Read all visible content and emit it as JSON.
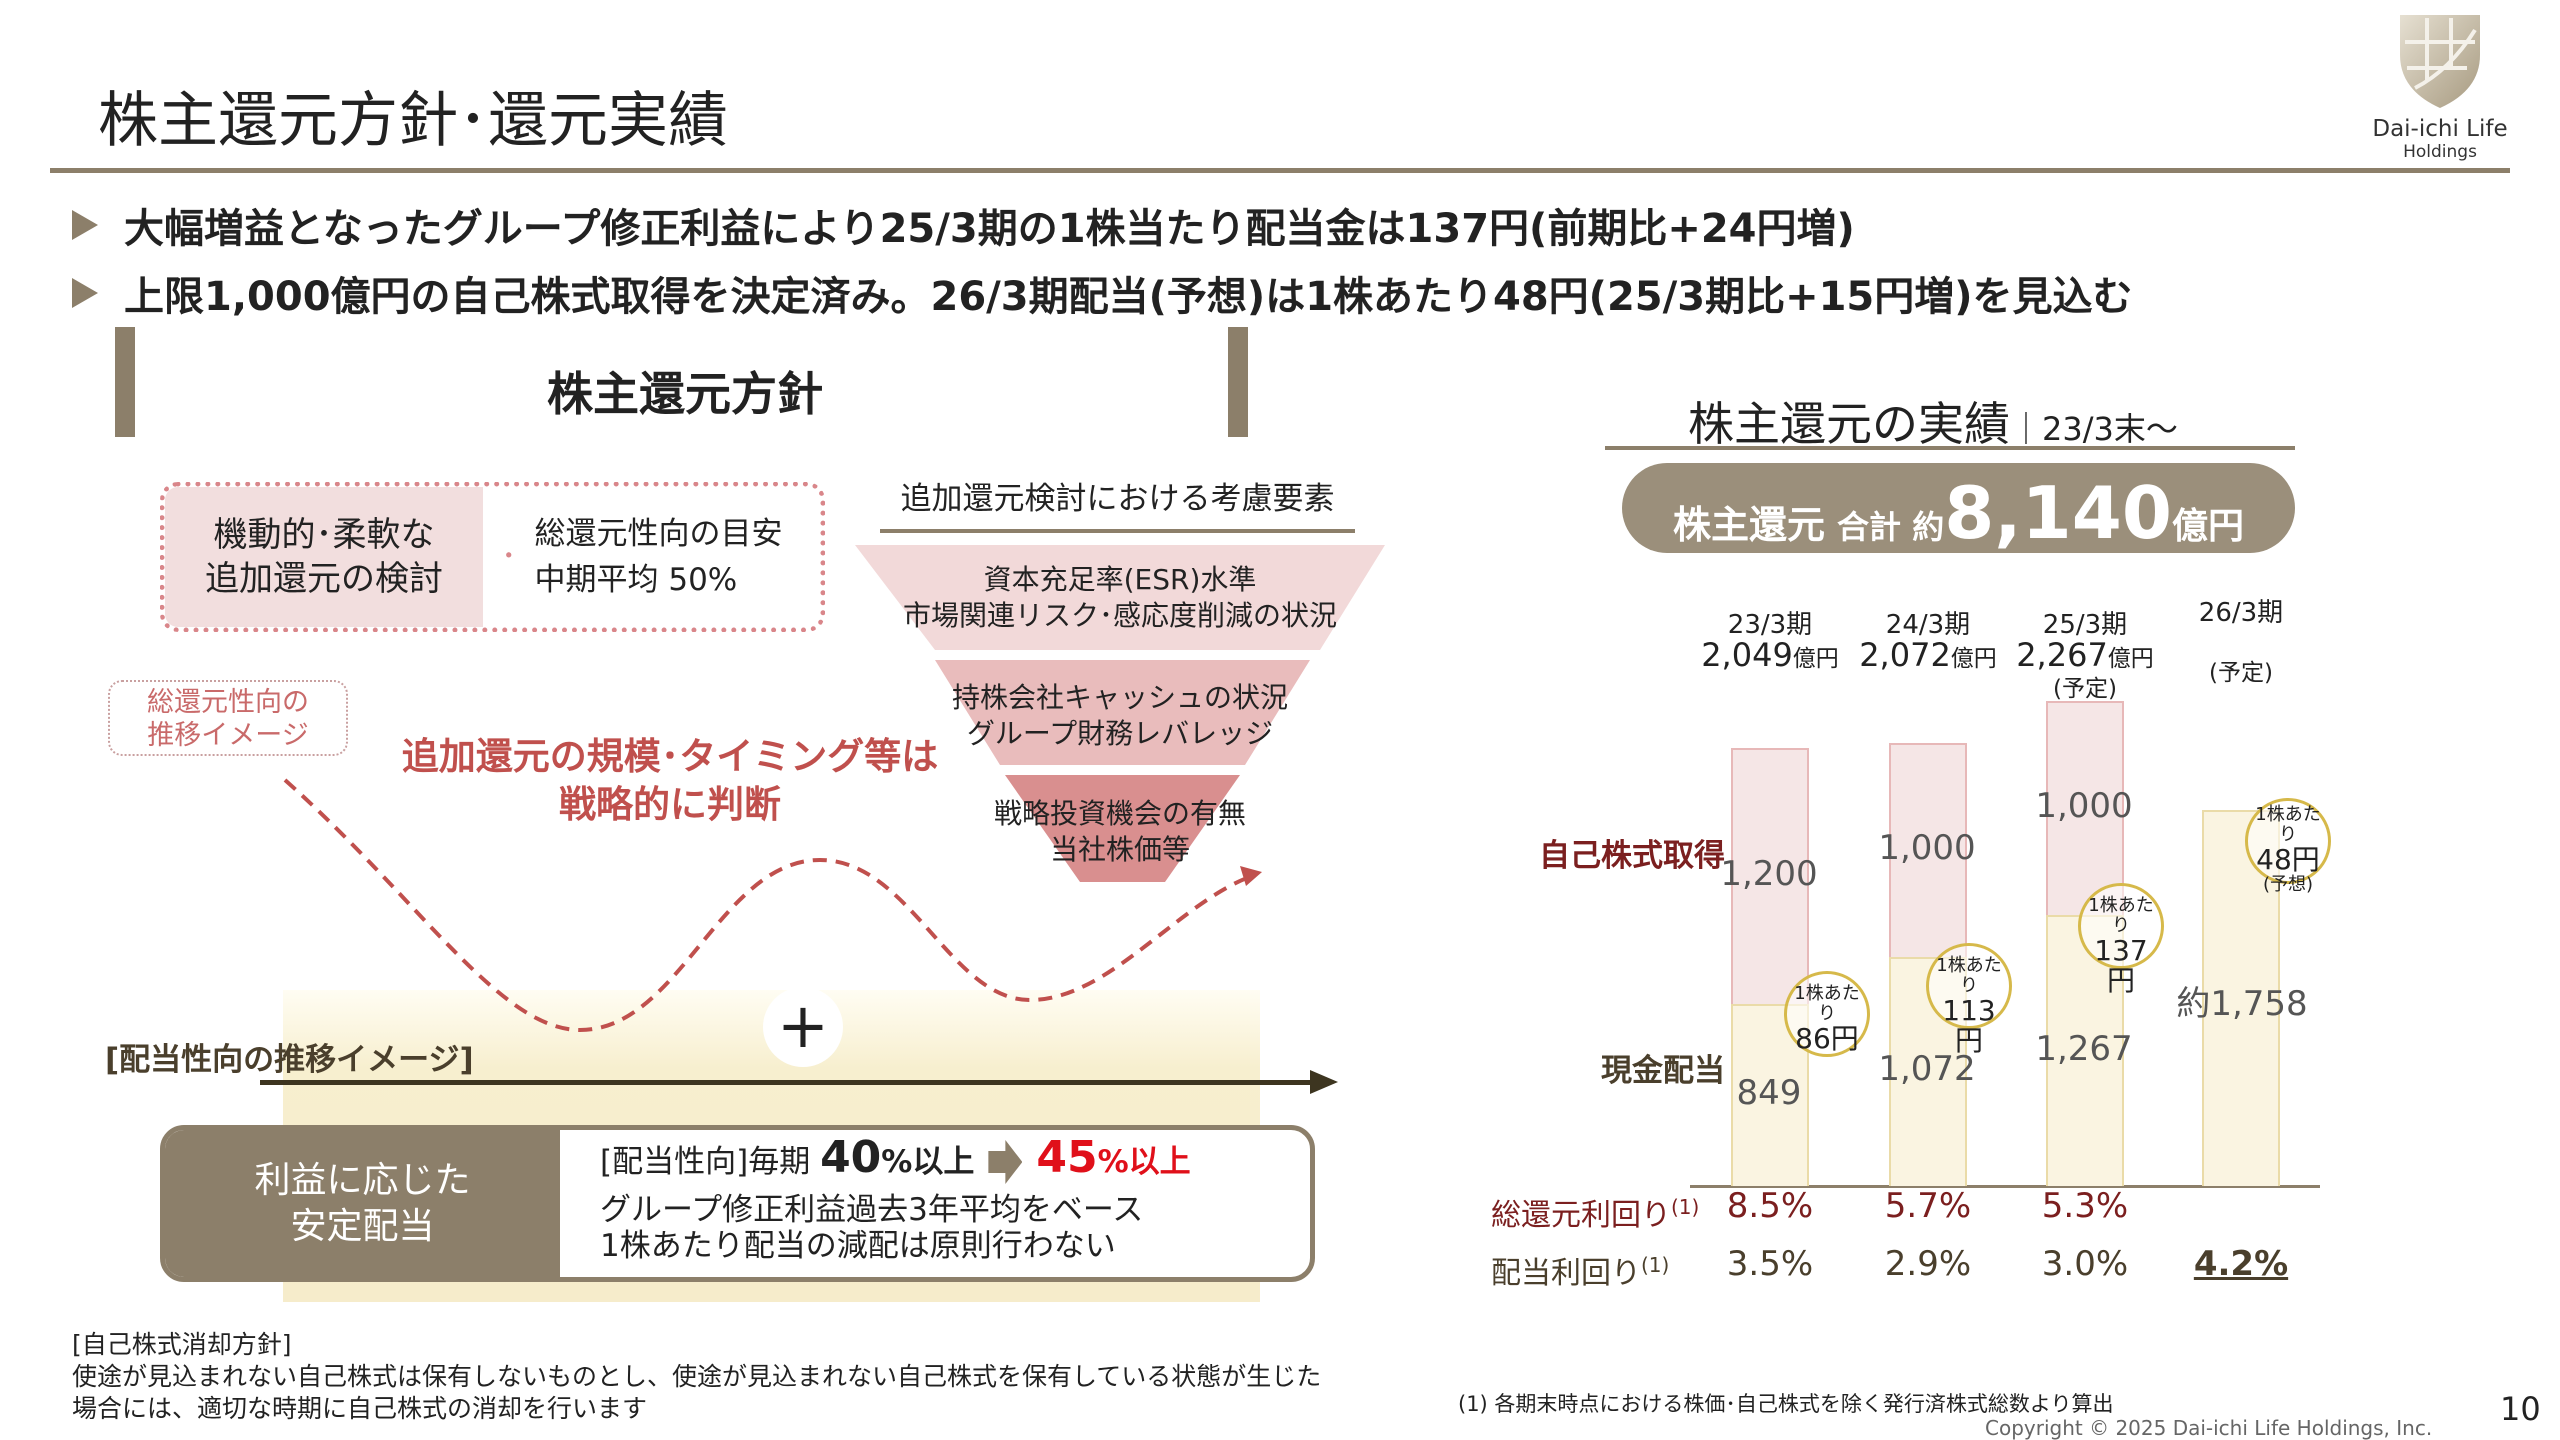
{
  "header": {
    "title": "株主還元方針･還元実績",
    "logo": {
      "name": "Dai-ichi Life",
      "sub": "Holdings"
    }
  },
  "bullets": [
    "大幅増益となったグループ修正利益により25/3期の1株当たり配当金は137円(前期比+24円増)",
    "上限1,000億円の自己株式取得を決定済み。26/3期配当(予想)は1株あたり48円(25/3期比+15円増)を見込む"
  ],
  "policy": {
    "heading": "株主還元方針",
    "flex_box": {
      "left": [
        "機動的･柔軟な",
        "追加還元の検討"
      ],
      "bullet": "･",
      "right": [
        "総還元性向の目安",
        "中期平均 50%"
      ]
    },
    "funnel": {
      "title": "追加還元検討における考慮要素",
      "levels": [
        [
          "資本充足率(ESR)水準",
          "市場関連リスク･感応度削減の状況"
        ],
        [
          "持株会社キャッシュの状況",
          "グループ財務レバレッジ"
        ],
        [
          "戦略投資機会の有無",
          "当社株価等"
        ]
      ],
      "colors": [
        "#f2d9d9",
        "#e9bcbc",
        "#d98f8f"
      ]
    },
    "trend_label": [
      "総還元性向の",
      "推移イメージ"
    ],
    "strategic_msg": [
      "追加還元の規模･タイミング等は",
      "戦略的に判断"
    ],
    "plus": "+",
    "payout_label": "[配当性向の推移イメージ]",
    "dividend_box": {
      "left": [
        "利益に応じた",
        "安定配当"
      ],
      "prefix": "[配当性向]毎期",
      "from_num": "40",
      "from_unit": "%以上",
      "to_num": "45",
      "to_unit": "%以上",
      "lines": [
        "グループ修正利益過去3年平均をベース",
        "1株あたり配当の減配は原則行わない"
      ]
    }
  },
  "notes": {
    "title": "[自己株式消却方針]",
    "lines": [
      "使途が見込まれない自己株式は保有しないものとし、使途が見込まれない自己株式を保有している状態が生じた",
      "場合には、適切な時期に自己株式の消却を行います"
    ]
  },
  "results": {
    "title": "株主還元の実績",
    "sub": "｜23/3末～",
    "total": {
      "a": "株主還元",
      "b": "合計 約",
      "c": "8,140",
      "d": "億円"
    }
  },
  "chart_data": {
    "type": "bar",
    "stacked": true,
    "categories": [
      "23/3期",
      "24/3期",
      "25/3期",
      "26/3期"
    ],
    "totals": [
      "2,049",
      "2,072",
      "2,267",
      ""
    ],
    "total_unit": "億円",
    "notes": [
      "",
      "",
      "(予定)",
      "(予定)"
    ],
    "series": [
      {
        "name": "現金配当",
        "values": [
          849,
          1072,
          1267,
          1758
        ],
        "labels": [
          "849",
          "1,072",
          "1,267",
          "約1,758"
        ],
        "color": "#faf4e1",
        "border": "#eadba8",
        "label_color": "#4a3f2c"
      },
      {
        "name": "自己株式取得",
        "values": [
          1200,
          1000,
          1000,
          0
        ],
        "labels": [
          "1,200",
          "1,000",
          "1,000",
          ""
        ],
        "color": "#f5e6e6",
        "border": "#e7b8b8",
        "label_color": "#7b1f1f"
      }
    ],
    "dps": [
      {
        "pre": "1株あたり",
        "v": "86円",
        "post": ""
      },
      {
        "pre": "1株あたり",
        "v": "113円",
        "post": ""
      },
      {
        "pre": "1株あたり",
        "v": "137円",
        "post": ""
      },
      {
        "pre": "1株あたり",
        "v": "48円",
        "post": "(予想)"
      }
    ],
    "ylim": [
      0,
      2400
    ],
    "yields": [
      {
        "label": "総還元利回り",
        "sup": "(1)",
        "values": [
          "8.5%",
          "5.7%",
          "5.3%",
          ""
        ],
        "color": "#7b1f1f"
      },
      {
        "label": "配当利回り",
        "sup": "(1)",
        "values": [
          "3.5%",
          "2.9%",
          "3.0%",
          "4.2%"
        ],
        "color": "#4a3f2c"
      }
    ]
  },
  "footnote": "(1) 各期末時点における株価･自己株式を除く発行済株式総数より算出",
  "copyright": "Copyright © 2025 Dai-ichi Life Holdings, Inc.",
  "page_number": "10"
}
